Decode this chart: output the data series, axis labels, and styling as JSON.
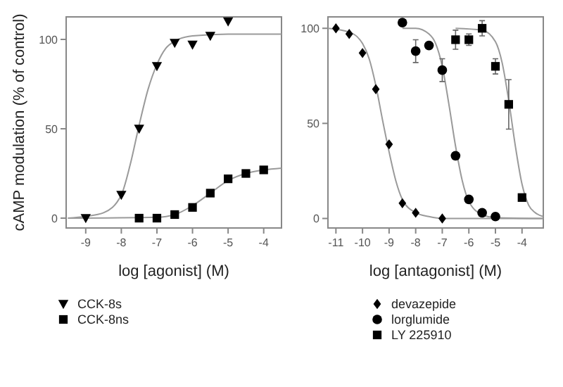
{
  "chart_data": [
    {
      "type": "scatter",
      "ylabel": "cAMP modulation (% of control)",
      "xlabel": "log [agonist] (M)",
      "xlim": [
        -9.55,
        -3.5
      ],
      "ylim": [
        -5.5,
        112.6
      ],
      "xticks": [
        -9,
        -8,
        -7,
        -6,
        -5,
        -4
      ],
      "yticks": [
        0,
        50,
        100
      ],
      "grid": false,
      "legend": "bottom",
      "series": [
        {
          "type": "line",
          "marker": "none",
          "color": "#9a9a9a",
          "x": [
            -9.5,
            -9,
            -8.5,
            -8,
            -7.75,
            -7.5,
            -7.25,
            -7,
            -6.75,
            -6.5,
            -6,
            -5,
            -3.5
          ],
          "values": [
            0,
            1,
            3,
            13,
            30,
            52,
            72,
            86,
            95,
            99,
            102,
            103,
            103
          ]
        },
        {
          "type": "line",
          "marker": "none",
          "color": "#9a9a9a",
          "x": [
            -9.5,
            -7,
            -6.5,
            -6,
            -5.5,
            -5,
            -4.5,
            -4,
            -3.5
          ],
          "values": [
            0,
            0.5,
            2,
            7,
            14,
            21,
            25,
            27,
            28
          ]
        },
        {
          "name": "CCK-8s",
          "marker": "triangle",
          "color": "#000000",
          "x": [
            -9,
            -8,
            -7.5,
            -7,
            -6.5,
            -6,
            -5.5,
            -5
          ],
          "values": [
            0,
            13,
            50,
            85,
            98,
            97,
            102,
            110
          ]
        },
        {
          "name": "CCK-8ns",
          "marker": "square",
          "color": "#000000",
          "x": [
            -7.5,
            -7,
            -6.5,
            -6,
            -5.5,
            -5,
            -4.5,
            -4
          ],
          "values": [
            0,
            0,
            2,
            6,
            14,
            22,
            25,
            27
          ]
        }
      ]
    },
    {
      "type": "scatter",
      "xlabel": "log [antagonist] (M)",
      "xlim": [
        -11.3,
        -3.2
      ],
      "ylim": [
        -5,
        106
      ],
      "xticks": [
        -11,
        -10,
        -9,
        -8,
        -7,
        -6,
        -5,
        -4
      ],
      "yticks": [
        0,
        50,
        100
      ],
      "grid": false,
      "legend": "bottom",
      "series": [
        {
          "type": "line",
          "marker": "none",
          "color": "#9a9a9a",
          "x": [
            -11.3,
            -10.5,
            -10,
            -9.75,
            -9.5,
            -9.25,
            -9,
            -8.75,
            -8.5,
            -8,
            -7.5,
            -7,
            -3.2
          ],
          "values": [
            100,
            98,
            92,
            84,
            70,
            52,
            35,
            20,
            10,
            3,
            1,
            0,
            0
          ]
        },
        {
          "type": "line",
          "marker": "none",
          "color": "#9a9a9a",
          "x": [
            -8.5,
            -8,
            -7.5,
            -7.25,
            -7,
            -6.75,
            -6.5,
            -6.25,
            -6,
            -5.5,
            -5,
            -3.2
          ],
          "values": [
            100,
            100,
            97,
            92,
            80,
            60,
            38,
            20,
            9,
            2,
            0.5,
            0
          ]
        },
        {
          "type": "line",
          "marker": "none",
          "color": "#9a9a9a",
          "x": [
            -6.5,
            -5.5,
            -5,
            -4.75,
            -4.5,
            -4.25,
            -4,
            -3.75,
            -3.5,
            -3.2
          ],
          "values": [
            100,
            99,
            93,
            82,
            62,
            38,
            18,
            7,
            3,
            1
          ]
        },
        {
          "name": "devazepide",
          "marker": "diamond",
          "color": "#000000",
          "x": [
            -11,
            -10.5,
            -10,
            -9.5,
            -9,
            -8.5,
            -8,
            -7
          ],
          "values": [
            100,
            97,
            87,
            68,
            39,
            8,
            3,
            0
          ]
        },
        {
          "name": "lorglumide",
          "marker": "circle",
          "color": "#000000",
          "x": [
            -8.5,
            -8,
            -7.5,
            -7,
            -6.5,
            -6,
            -5.5,
            -5
          ],
          "values": [
            103,
            88,
            91,
            78,
            33,
            10,
            3,
            1
          ],
          "errors": [
            null,
            6,
            null,
            6,
            null,
            null,
            null,
            null
          ]
        },
        {
          "name": "LY 225910",
          "marker": "square",
          "color": "#000000",
          "x": [
            -6.5,
            -6,
            -5.5,
            -5,
            -4.5,
            -4
          ],
          "values": [
            94,
            94,
            100,
            80,
            60,
            11
          ],
          "errors": [
            5,
            3,
            4,
            4,
            13,
            null
          ]
        }
      ]
    }
  ]
}
